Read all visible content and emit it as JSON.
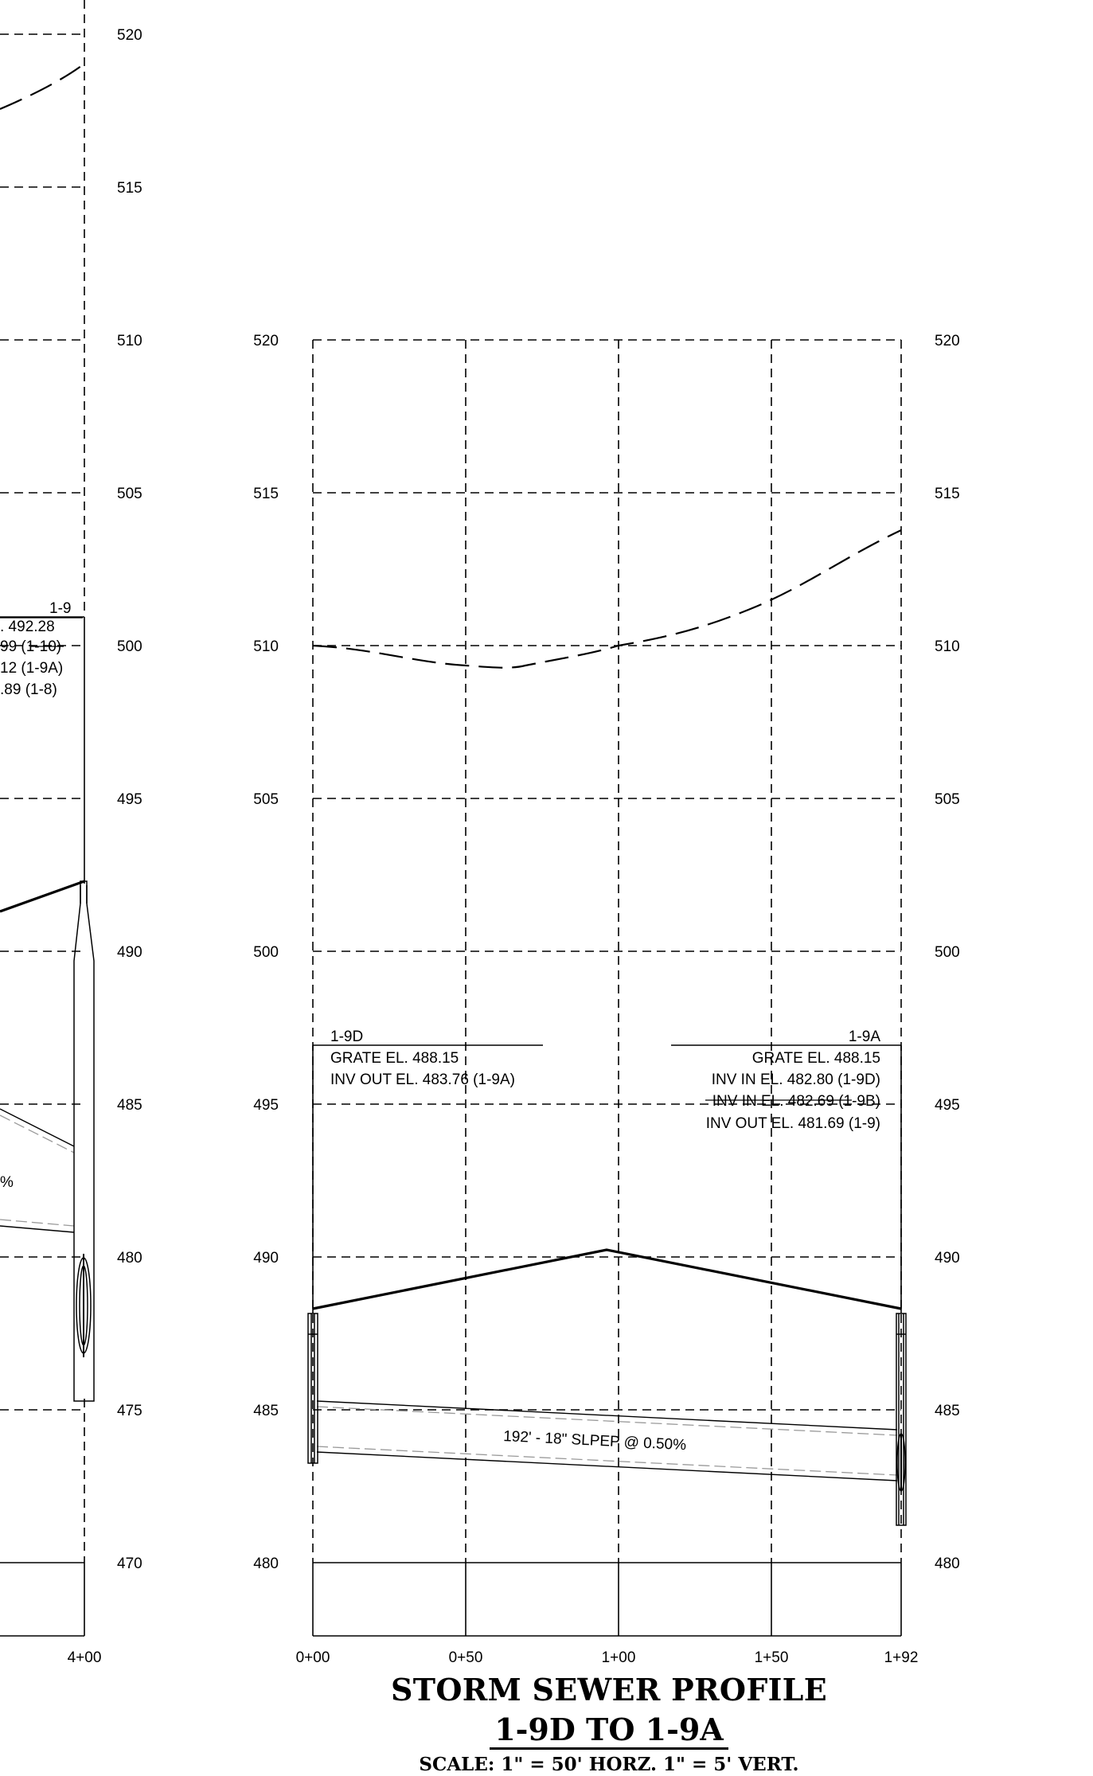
{
  "left_profile": {
    "elevation_labels": [
      "520",
      "515",
      "510",
      "505",
      "500",
      "495",
      "490",
      "485",
      "480",
      "475",
      "470"
    ],
    "station_end": "4+00",
    "structure": {
      "name": "1-9",
      "lines": [
        ". 492.28",
        "99 (1-10)",
        "12 (1-9A)",
        ".89 (1-8)"
      ]
    },
    "pipe_fragment": "%"
  },
  "right_profile": {
    "left_elevation_labels": [
      "520",
      "515",
      "510",
      "505",
      "500",
      "495",
      "490",
      "485",
      "480"
    ],
    "right_elevation_labels": [
      "520",
      "515",
      "510",
      "505",
      "500",
      "495",
      "490",
      "485",
      "480"
    ],
    "stations": [
      "0+00",
      "0+50",
      "1+00",
      "1+50",
      "1+92"
    ],
    "start_structure": {
      "name": "1-9D",
      "grate": "GRATE EL. 488.15",
      "inv_out": "INV OUT EL. 483.76 (1-9A)"
    },
    "end_structure": {
      "name": "1-9A",
      "grate": "GRATE EL. 488.15",
      "inv_in_1": "INV IN EL. 482.80 (1-9D)",
      "inv_in_2": "INV IN EL. 482.69 (1-9B)",
      "inv_out": "INV OUT EL. 481.69 (1-9)"
    },
    "pipe_label": "192' - 18\" SLPEP @ 0.50%"
  },
  "title": {
    "line1": "STORM SEWER PROFILE",
    "line2": "1-9D TO 1-9A",
    "scale": "SCALE: 1\" = 50' HORZ.  1\" = 5' VERT."
  }
}
